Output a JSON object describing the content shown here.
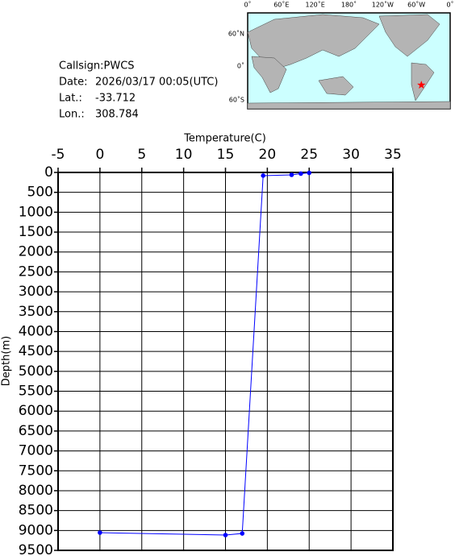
{
  "info": {
    "callsign": "Callsign:PWCS",
    "date_label": "Date:",
    "date": "2026/03/17 00:05(UTC)",
    "lat_label": "Lat.:",
    "lat": -33.712,
    "lon_label": "Lon.:",
    "lon": 308.784
  },
  "map": {
    "lon_labels": [
      "0˚",
      "60˚E",
      "120˚E",
      "180˚",
      "120˚W",
      "60˚W",
      "0˚"
    ],
    "lat_labels": [
      "60˚N",
      "0˚",
      "60˚S"
    ]
  },
  "chart_data": {
    "type": "line",
    "x_label": "Temperature(C)",
    "y_label": "Depth(m)",
    "series": [
      {
        "color": "#0000ff",
        "x": [
          25.0,
          24.0,
          22.9,
          19.5,
          17.0,
          15.0,
          0
        ],
        "values": [
          10,
          30,
          60,
          80,
          9075,
          9115,
          9055
        ]
      }
    ],
    "xlim": [
      -5,
      35
    ],
    "xticks": [
      -5,
      0,
      5,
      10,
      15,
      20,
      25,
      30,
      35
    ],
    "ylim": [
      0,
      9500
    ],
    "yticks": [
      0,
      500,
      1000,
      1500,
      2000,
      2500,
      3000,
      3500,
      4000,
      4500,
      5000,
      5500,
      6000,
      6500,
      7000,
      7500,
      8000,
      8500,
      9000,
      9500
    ],
    "y_inverted": true,
    "grid": true
  }
}
